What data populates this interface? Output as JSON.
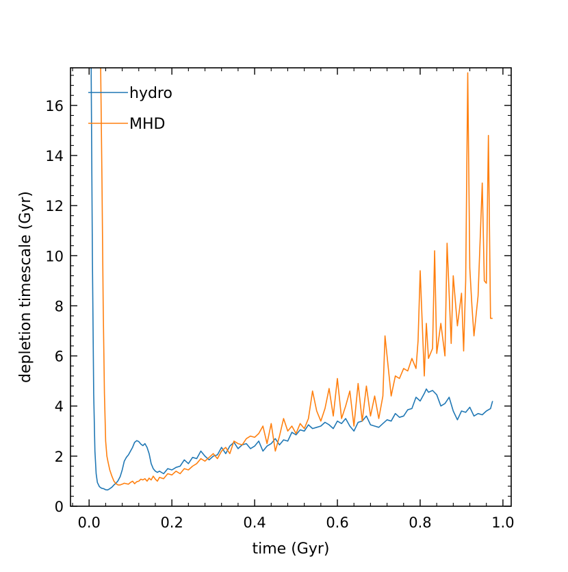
{
  "chart_data": {
    "type": "line",
    "title": "",
    "xlabel": "time (Gyr)",
    "ylabel": "depletion timescale (Gyr)",
    "xlim": [
      -0.045,
      1.02
    ],
    "ylim": [
      0,
      17.5
    ],
    "xticks": [
      0.0,
      0.2,
      0.4,
      0.6,
      0.8,
      1.0
    ],
    "xtick_labels": [
      "0.0",
      "0.2",
      "0.4",
      "0.6",
      "0.8",
      "1.0"
    ],
    "yticks": [
      0,
      2,
      4,
      6,
      8,
      10,
      12,
      14,
      16
    ],
    "ytick_labels": [
      "0",
      "2",
      "4",
      "6",
      "8",
      "10",
      "12",
      "14",
      "16"
    ],
    "grid": false,
    "legend_position": "top-left",
    "series": [
      {
        "name": "hydro",
        "color": "#1f77b4",
        "x": [
          0.005,
          0.008,
          0.011,
          0.014,
          0.017,
          0.02,
          0.025,
          0.03,
          0.035,
          0.04,
          0.045,
          0.05,
          0.055,
          0.06,
          0.065,
          0.07,
          0.075,
          0.08,
          0.085,
          0.09,
          0.095,
          0.1,
          0.105,
          0.11,
          0.115,
          0.12,
          0.125,
          0.13,
          0.135,
          0.14,
          0.145,
          0.15,
          0.155,
          0.16,
          0.165,
          0.17,
          0.18,
          0.19,
          0.2,
          0.21,
          0.22,
          0.23,
          0.24,
          0.25,
          0.26,
          0.27,
          0.28,
          0.29,
          0.3,
          0.31,
          0.32,
          0.33,
          0.34,
          0.35,
          0.36,
          0.37,
          0.38,
          0.39,
          0.4,
          0.41,
          0.42,
          0.43,
          0.44,
          0.45,
          0.46,
          0.47,
          0.48,
          0.49,
          0.5,
          0.51,
          0.52,
          0.53,
          0.54,
          0.55,
          0.56,
          0.57,
          0.58,
          0.59,
          0.6,
          0.61,
          0.62,
          0.63,
          0.64,
          0.65,
          0.66,
          0.67,
          0.68,
          0.69,
          0.7,
          0.71,
          0.72,
          0.73,
          0.74,
          0.75,
          0.76,
          0.77,
          0.78,
          0.79,
          0.8,
          0.81,
          0.815,
          0.82,
          0.83,
          0.84,
          0.85,
          0.86,
          0.87,
          0.88,
          0.89,
          0.9,
          0.91,
          0.92,
          0.93,
          0.94,
          0.95,
          0.96,
          0.97,
          0.975
        ],
        "y": [
          17.5,
          10.0,
          4.5,
          2.2,
          1.3,
          0.95,
          0.78,
          0.72,
          0.7,
          0.66,
          0.65,
          0.7,
          0.76,
          0.85,
          0.92,
          1.02,
          1.18,
          1.45,
          1.8,
          1.95,
          2.05,
          2.2,
          2.35,
          2.55,
          2.62,
          2.58,
          2.48,
          2.42,
          2.5,
          2.35,
          2.1,
          1.7,
          1.5,
          1.4,
          1.35,
          1.4,
          1.3,
          1.5,
          1.45,
          1.55,
          1.6,
          1.85,
          1.7,
          1.95,
          1.9,
          2.2,
          2.0,
          1.85,
          2.0,
          2.05,
          2.35,
          2.1,
          2.4,
          2.55,
          2.3,
          2.45,
          2.5,
          2.3,
          2.4,
          2.6,
          2.2,
          2.4,
          2.5,
          2.7,
          2.45,
          2.65,
          2.6,
          2.95,
          2.85,
          3.05,
          3.0,
          3.25,
          3.1,
          3.15,
          3.2,
          3.35,
          3.25,
          3.1,
          3.4,
          3.3,
          3.5,
          3.2,
          3.0,
          3.35,
          3.4,
          3.6,
          3.25,
          3.2,
          3.15,
          3.3,
          3.45,
          3.4,
          3.7,
          3.55,
          3.6,
          3.85,
          3.9,
          4.35,
          4.2,
          4.5,
          4.68,
          4.55,
          4.62,
          4.45,
          4.0,
          4.1,
          4.35,
          3.8,
          3.45,
          3.8,
          3.75,
          3.95,
          3.6,
          3.7,
          3.65,
          3.8,
          3.9,
          4.2
        ]
      },
      {
        "name": "MHD",
        "color": "#ff7f0e",
        "x": [
          0.028,
          0.031,
          0.034,
          0.037,
          0.04,
          0.043,
          0.046,
          0.05,
          0.055,
          0.06,
          0.065,
          0.07,
          0.075,
          0.08,
          0.085,
          0.09,
          0.095,
          0.1,
          0.105,
          0.11,
          0.115,
          0.12,
          0.125,
          0.13,
          0.135,
          0.14,
          0.145,
          0.15,
          0.155,
          0.16,
          0.165,
          0.17,
          0.18,
          0.19,
          0.2,
          0.21,
          0.22,
          0.23,
          0.24,
          0.25,
          0.26,
          0.27,
          0.28,
          0.29,
          0.3,
          0.31,
          0.32,
          0.33,
          0.34,
          0.35,
          0.36,
          0.37,
          0.38,
          0.39,
          0.4,
          0.41,
          0.42,
          0.43,
          0.44,
          0.45,
          0.46,
          0.47,
          0.48,
          0.49,
          0.5,
          0.51,
          0.52,
          0.53,
          0.54,
          0.55,
          0.56,
          0.57,
          0.58,
          0.59,
          0.6,
          0.61,
          0.62,
          0.63,
          0.64,
          0.65,
          0.66,
          0.67,
          0.68,
          0.69,
          0.7,
          0.71,
          0.715,
          0.72,
          0.73,
          0.74,
          0.75,
          0.76,
          0.77,
          0.78,
          0.79,
          0.795,
          0.8,
          0.81,
          0.815,
          0.82,
          0.83,
          0.835,
          0.84,
          0.85,
          0.86,
          0.865,
          0.87,
          0.875,
          0.88,
          0.89,
          0.9,
          0.905,
          0.91,
          0.915,
          0.92,
          0.925,
          0.93,
          0.94,
          0.95,
          0.955,
          0.96,
          0.965,
          0.97,
          0.975
        ],
        "y": [
          17.5,
          13.0,
          8.0,
          4.5,
          2.6,
          2.0,
          1.75,
          1.45,
          1.2,
          1.0,
          0.9,
          0.85,
          0.85,
          0.88,
          0.92,
          0.9,
          0.88,
          0.95,
          1.0,
          0.9,
          0.98,
          1.0,
          1.08,
          1.05,
          1.1,
          1.0,
          1.12,
          1.05,
          1.2,
          1.08,
          1.0,
          1.15,
          1.1,
          1.3,
          1.25,
          1.4,
          1.3,
          1.5,
          1.45,
          1.6,
          1.7,
          1.9,
          1.8,
          1.95,
          2.1,
          1.9,
          2.2,
          2.35,
          2.1,
          2.6,
          2.5,
          2.45,
          2.7,
          2.8,
          2.75,
          2.9,
          3.2,
          2.5,
          3.3,
          2.2,
          2.8,
          3.5,
          3.0,
          3.2,
          2.9,
          3.3,
          3.1,
          3.5,
          4.6,
          3.8,
          3.4,
          3.9,
          4.7,
          3.6,
          5.1,
          3.5,
          4.0,
          4.6,
          3.2,
          4.9,
          3.4,
          4.8,
          3.6,
          4.4,
          3.5,
          4.4,
          6.8,
          6.0,
          4.4,
          5.2,
          5.1,
          5.5,
          5.4,
          5.9,
          5.5,
          6.6,
          9.4,
          5.2,
          7.3,
          5.9,
          6.3,
          10.2,
          6.1,
          7.3,
          6.0,
          10.5,
          8.5,
          6.5,
          9.2,
          7.2,
          8.5,
          6.2,
          9.0,
          17.3,
          9.5,
          8.0,
          6.8,
          8.4,
          12.9,
          9.0,
          8.9,
          14.8,
          7.5,
          7.5
        ]
      }
    ]
  }
}
